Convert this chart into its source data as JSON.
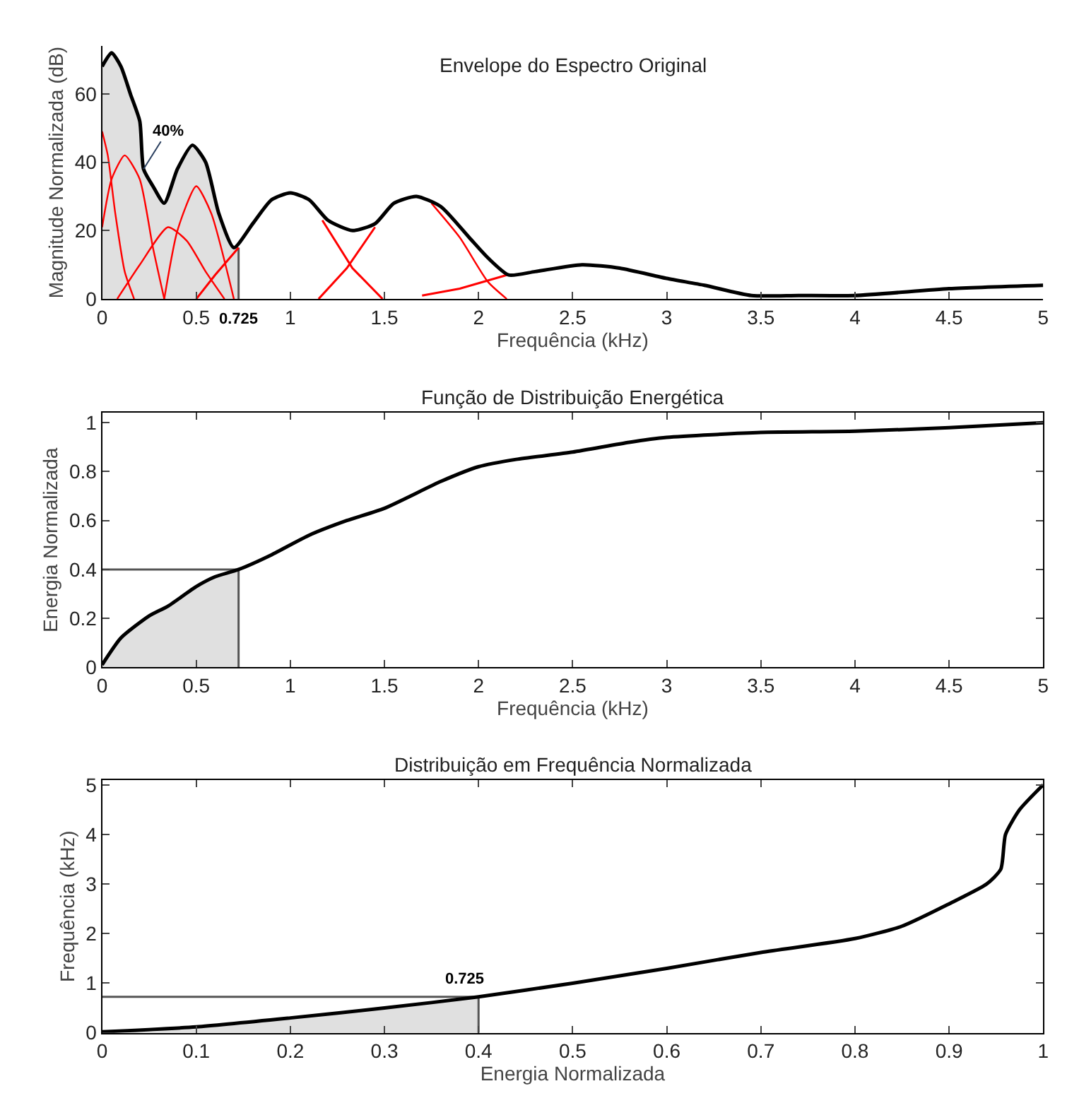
{
  "chart_data": [
    {
      "type": "line",
      "title": "Envelope do Espectro Original",
      "xlabel": "Frequência (kHz)",
      "ylabel": "Magnitude Normalizada (dB)",
      "xlim": [
        0,
        5
      ],
      "ylim": [
        0,
        74
      ],
      "xticks": [
        0,
        0.5,
        1,
        1.5,
        2,
        2.5,
        3,
        3.5,
        4,
        4.5,
        5
      ],
      "yticks": [
        0,
        20,
        40,
        60
      ],
      "annotations": [
        {
          "text": "40%",
          "x": 0.22,
          "y": 38
        },
        {
          "text": "0.725",
          "x": 0.725,
          "y": 0
        }
      ],
      "series": [
        {
          "type": "area",
          "color": "#e0e0e0",
          "x": [
            0,
            0.05,
            0.1,
            0.15,
            0.2,
            0.22,
            0.27,
            0.33,
            0.4,
            0.48,
            0.55,
            0.62,
            0.7,
            0.725
          ],
          "values": [
            68,
            72,
            68,
            60,
            52,
            38,
            33,
            28,
            38,
            45,
            40,
            25,
            15,
            15
          ]
        },
        {
          "color": "#555555",
          "x": [
            0.725,
            0.725
          ],
          "values": [
            0,
            15
          ]
        },
        {
          "type": "line",
          "color": "#ff0000",
          "x": [
            0,
            0.03,
            0.07,
            0.12,
            0.17
          ],
          "values": [
            49,
            42,
            25,
            8,
            0
          ]
        },
        {
          "type": "line",
          "color": "#ff0000",
          "x": [
            0,
            0.05,
            0.12,
            0.2,
            0.27,
            0.33
          ],
          "values": [
            21,
            35,
            42,
            35,
            15,
            0
          ]
        },
        {
          "type": "line",
          "color": "#ff0000",
          "x": [
            0.08,
            0.2,
            0.35,
            0.45,
            0.55,
            0.65
          ],
          "values": [
            0,
            10,
            21,
            17,
            8,
            0
          ]
        },
        {
          "type": "line",
          "color": "#ff0000",
          "x": [
            0.33,
            0.4,
            0.5,
            0.58,
            0.7
          ],
          "values": [
            0,
            20,
            33,
            25,
            0
          ]
        },
        {
          "type": "line",
          "color": "#ff0000",
          "x": [
            0.5,
            0.6,
            0.725
          ],
          "values": [
            0,
            7,
            15
          ]
        },
        {
          "type": "line",
          "color": "#ff0000",
          "x": [
            1.17,
            1.33,
            1.49
          ],
          "values": [
            23,
            9,
            0
          ]
        },
        {
          "type": "line",
          "color": "#ff0000",
          "x": [
            1.15,
            1.3,
            1.45
          ],
          "values": [
            0,
            9,
            21
          ]
        },
        {
          "type": "line",
          "color": "#ff0000",
          "x": [
            1.75,
            1.9,
            2.05,
            2.15
          ],
          "values": [
            28,
            18,
            5,
            0
          ]
        },
        {
          "type": "line",
          "color": "#ff0000",
          "x": [
            1.7,
            1.9,
            2.15
          ],
          "values": [
            1,
            3,
            7
          ]
        },
        {
          "color": "#000000",
          "x": [
            0,
            0.05,
            0.1,
            0.15,
            0.2,
            0.22,
            0.27,
            0.33,
            0.4,
            0.48,
            0.55,
            0.62,
            0.7,
            0.8,
            0.9,
            1.0,
            1.1,
            1.2,
            1.33,
            1.45,
            1.55,
            1.67,
            1.8,
            1.95,
            2.05,
            2.16,
            2.3,
            2.55,
            2.75,
            3.0,
            3.2,
            3.45,
            3.7,
            4.0,
            4.5,
            5.0
          ],
          "values": [
            68,
            72,
            68,
            60,
            52,
            38,
            33,
            28,
            38,
            45,
            40,
            25,
            15,
            22,
            29,
            31,
            29,
            23,
            20,
            22,
            28,
            30,
            27,
            18,
            12,
            7,
            8,
            10,
            9,
            6,
            4,
            1,
            1,
            1,
            3,
            4
          ]
        }
      ]
    },
    {
      "type": "line",
      "title": "Função de Distribuição Energética",
      "xlabel": "Frequência (kHz)",
      "ylabel": "Energia Normalizada",
      "xlim": [
        0,
        5
      ],
      "ylim": [
        0,
        1.04
      ],
      "xticks": [
        0,
        0.5,
        1,
        1.5,
        2,
        2.5,
        3,
        3.5,
        4,
        4.5,
        5
      ],
      "yticks": [
        0,
        0.2,
        0.4,
        0.6,
        0.8,
        1
      ],
      "series": [
        {
          "type": "area",
          "color": "#e0e0e0",
          "x": [
            0,
            0.1,
            0.25,
            0.35,
            0.5,
            0.6,
            0.725
          ],
          "values": [
            0.01,
            0.12,
            0.21,
            0.25,
            0.33,
            0.37,
            0.4
          ]
        },
        {
          "color": "#555555",
          "x": [
            0,
            0.725
          ],
          "values": [
            0.4,
            0.4
          ]
        },
        {
          "color": "#555555",
          "x": [
            0.725,
            0.725
          ],
          "values": [
            0,
            0.4
          ]
        },
        {
          "color": "#000000",
          "x": [
            0,
            0.1,
            0.25,
            0.35,
            0.5,
            0.6,
            0.725,
            0.9,
            1.1,
            1.3,
            1.5,
            1.8,
            2.0,
            2.2,
            2.5,
            2.8,
            3.0,
            3.5,
            4.0,
            4.5,
            5.0
          ],
          "values": [
            0.01,
            0.12,
            0.21,
            0.25,
            0.33,
            0.37,
            0.4,
            0.46,
            0.54,
            0.6,
            0.65,
            0.76,
            0.82,
            0.85,
            0.88,
            0.92,
            0.94,
            0.96,
            0.965,
            0.98,
            1.0
          ]
        }
      ]
    },
    {
      "type": "line",
      "title": "Distribuição em Frequência Normalizada",
      "xlabel": "Energia Normalizada",
      "ylabel": "Frequência (kHz)",
      "xlim": [
        0,
        1
      ],
      "ylim": [
        0,
        5.1
      ],
      "xticks": [
        0,
        0.1,
        0.2,
        0.3,
        0.4,
        0.5,
        0.6,
        0.7,
        0.8,
        0.9,
        1
      ],
      "yticks": [
        0,
        1,
        2,
        3,
        4,
        5
      ],
      "annotations": [
        {
          "text": "0.725",
          "x": 0.4,
          "y": 0.725
        }
      ],
      "series": [
        {
          "type": "area",
          "color": "#e0e0e0",
          "x": [
            0,
            0.1,
            0.2,
            0.3,
            0.4
          ],
          "values": [
            0.02,
            0.12,
            0.3,
            0.5,
            0.725
          ]
        },
        {
          "color": "#555555",
          "x": [
            0,
            0.4
          ],
          "values": [
            0.725,
            0.725
          ]
        },
        {
          "color": "#555555",
          "x": [
            0.4,
            0.4
          ],
          "values": [
            0,
            0.725
          ]
        },
        {
          "color": "#000000",
          "x": [
            0,
            0.1,
            0.2,
            0.3,
            0.4,
            0.5,
            0.6,
            0.7,
            0.8,
            0.85,
            0.9,
            0.94,
            0.955,
            0.96,
            0.975,
            1.0
          ],
          "values": [
            0.02,
            0.12,
            0.3,
            0.5,
            0.725,
            1.0,
            1.3,
            1.62,
            1.9,
            2.15,
            2.6,
            3.0,
            3.3,
            4.0,
            4.5,
            5.0
          ]
        }
      ]
    }
  ]
}
